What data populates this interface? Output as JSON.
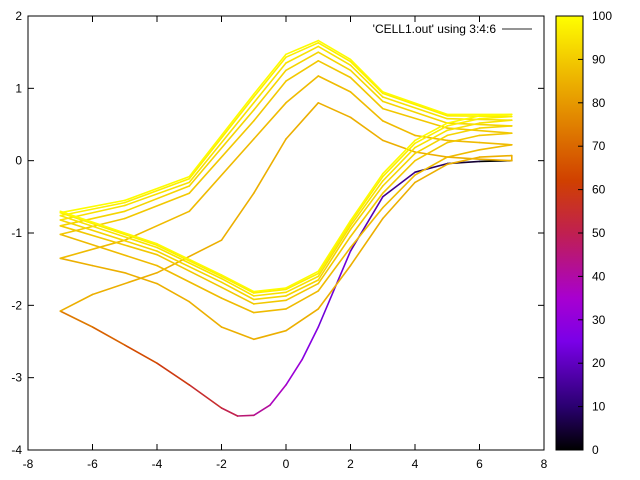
{
  "chart_data": {
    "type": "line",
    "title": "",
    "xlabel": "",
    "ylabel": "",
    "xlim": [
      -8,
      8
    ],
    "ylim": [
      -4,
      2
    ],
    "x_ticks": [
      "-8",
      "-6",
      "-4",
      "-2",
      "0",
      "2",
      "4",
      "6",
      "8"
    ],
    "y_ticks": [
      "-4",
      "-3",
      "-2",
      "-1",
      "0",
      "1",
      "2"
    ],
    "legend": {
      "label": "'CELL1.out' using 3:4:6",
      "position": "top-right"
    },
    "colorbar": {
      "range": [
        0,
        100
      ],
      "ticks": [
        "0",
        "10",
        "20",
        "30",
        "40",
        "50",
        "60",
        "70",
        "80",
        "90",
        "100"
      ],
      "palette": [
        "#000000",
        "#5a00c8",
        "#9a00ff",
        "#c21848",
        "#d84a00",
        "#e88a00",
        "#f0c400",
        "#ffff00"
      ]
    },
    "series": [
      {
        "cycle": 1,
        "points": [
          [
            7.0,
            0.0
          ],
          [
            6.0,
            -0.01
          ],
          [
            5.0,
            -0.04
          ],
          [
            4.0,
            -0.16
          ],
          [
            3.0,
            -0.5
          ],
          [
            2.0,
            -1.25
          ],
          [
            1.0,
            -2.3
          ],
          [
            0.5,
            -2.75
          ],
          [
            0.0,
            -3.1
          ],
          [
            -0.5,
            -3.38
          ],
          [
            -1.0,
            -3.52
          ],
          [
            -1.5,
            -3.53
          ],
          [
            -2.0,
            -3.42
          ],
          [
            -3.0,
            -3.1
          ],
          [
            -4.0,
            -2.8
          ],
          [
            -5.0,
            -2.55
          ],
          [
            -6.0,
            -2.3
          ],
          [
            -7.0,
            -2.08
          ]
        ]
      },
      {
        "cycle": 2,
        "points": [
          [
            -7.0,
            -2.08
          ],
          [
            -6.0,
            -1.85
          ],
          [
            -4.0,
            -1.55
          ],
          [
            -2.0,
            -1.1
          ],
          [
            -1.0,
            -0.45
          ],
          [
            0.0,
            0.3
          ],
          [
            1.0,
            0.8
          ],
          [
            2.0,
            0.6
          ],
          [
            3.0,
            0.28
          ],
          [
            4.0,
            0.12
          ],
          [
            5.0,
            0.05
          ],
          [
            6.0,
            0.02
          ],
          [
            7.0,
            0.0
          ],
          [
            7.0,
            0.07
          ],
          [
            6.0,
            0.05
          ],
          [
            5.0,
            -0.05
          ],
          [
            4.0,
            -0.3
          ],
          [
            3.0,
            -0.8
          ],
          [
            2.0,
            -1.45
          ],
          [
            1.0,
            -2.05
          ],
          [
            0.0,
            -2.35
          ],
          [
            -1.0,
            -2.47
          ],
          [
            -2.0,
            -2.3
          ],
          [
            -3.0,
            -1.95
          ],
          [
            -4.0,
            -1.7
          ],
          [
            -5.0,
            -1.55
          ],
          [
            -6.0,
            -1.45
          ],
          [
            -7.0,
            -1.35
          ]
        ]
      },
      {
        "cycle": 3,
        "points": [
          [
            -7.0,
            -1.35
          ],
          [
            -5.0,
            -1.1
          ],
          [
            -3.0,
            -0.7
          ],
          [
            -1.0,
            0.3
          ],
          [
            0.0,
            0.8
          ],
          [
            1.0,
            1.17
          ],
          [
            2.0,
            0.95
          ],
          [
            3.0,
            0.55
          ],
          [
            4.0,
            0.35
          ],
          [
            5.0,
            0.28
          ],
          [
            6.0,
            0.25
          ],
          [
            7.0,
            0.22
          ],
          [
            6.0,
            0.15
          ],
          [
            5.0,
            0.05
          ],
          [
            4.0,
            -0.2
          ],
          [
            3.0,
            -0.65
          ],
          [
            2.0,
            -1.2
          ],
          [
            1.0,
            -1.8
          ],
          [
            0.0,
            -2.05
          ],
          [
            -1.0,
            -2.1
          ],
          [
            -2.0,
            -1.9
          ],
          [
            -4.0,
            -1.45
          ],
          [
            -7.0,
            -1.02
          ]
        ]
      },
      {
        "cycle": 4,
        "points": [
          [
            -7.0,
            -1.02
          ],
          [
            -5.0,
            -0.8
          ],
          [
            -3.0,
            -0.45
          ],
          [
            -1.0,
            0.55
          ],
          [
            0.0,
            1.1
          ],
          [
            1.0,
            1.38
          ],
          [
            2.0,
            1.15
          ],
          [
            3.0,
            0.72
          ],
          [
            5.0,
            0.45
          ],
          [
            7.0,
            0.38
          ],
          [
            6.0,
            0.35
          ],
          [
            5.0,
            0.25
          ],
          [
            4.0,
            0.0
          ],
          [
            3.0,
            -0.45
          ],
          [
            2.0,
            -1.05
          ],
          [
            1.0,
            -1.7
          ],
          [
            0.0,
            -1.93
          ],
          [
            -1.0,
            -1.98
          ],
          [
            -2.0,
            -1.75
          ],
          [
            -4.0,
            -1.3
          ],
          [
            -7.0,
            -0.9
          ]
        ]
      },
      {
        "cycle": 5,
        "points": [
          [
            -7.0,
            -0.9
          ],
          [
            -5.0,
            -0.7
          ],
          [
            -3.0,
            -0.35
          ],
          [
            -1.0,
            0.7
          ],
          [
            0.0,
            1.25
          ],
          [
            1.0,
            1.5
          ],
          [
            2.0,
            1.25
          ],
          [
            3.0,
            0.82
          ],
          [
            5.0,
            0.52
          ],
          [
            7.0,
            0.48
          ],
          [
            6.0,
            0.45
          ],
          [
            5.0,
            0.35
          ],
          [
            4.0,
            0.1
          ],
          [
            3.0,
            -0.35
          ],
          [
            2.0,
            -0.95
          ],
          [
            1.0,
            -1.65
          ],
          [
            0.0,
            -1.87
          ],
          [
            -1.0,
            -1.92
          ],
          [
            -2.0,
            -1.68
          ],
          [
            -4.0,
            -1.25
          ],
          [
            -7.0,
            -0.82
          ]
        ]
      },
      {
        "cycle": 6,
        "points": [
          [
            -7.0,
            -0.82
          ],
          [
            -5.0,
            -0.62
          ],
          [
            -3.0,
            -0.3
          ],
          [
            -1.0,
            0.8
          ],
          [
            0.0,
            1.35
          ],
          [
            1.0,
            1.58
          ],
          [
            2.0,
            1.32
          ],
          [
            3.0,
            0.88
          ],
          [
            5.0,
            0.58
          ],
          [
            7.0,
            0.56
          ],
          [
            6.0,
            0.52
          ],
          [
            5.0,
            0.42
          ],
          [
            4.0,
            0.18
          ],
          [
            3.0,
            -0.28
          ],
          [
            2.0,
            -0.9
          ],
          [
            1.0,
            -1.6
          ],
          [
            0.0,
            -1.82
          ],
          [
            -1.0,
            -1.87
          ],
          [
            -2.0,
            -1.63
          ],
          [
            -4.0,
            -1.2
          ],
          [
            -7.0,
            -0.76
          ]
        ]
      },
      {
        "cycle": 7,
        "points": [
          [
            -7.0,
            -0.76
          ],
          [
            -5.0,
            -0.58
          ],
          [
            -3.0,
            -0.25
          ],
          [
            -1.0,
            0.88
          ],
          [
            0.0,
            1.43
          ],
          [
            1.0,
            1.63
          ],
          [
            2.0,
            1.37
          ],
          [
            3.0,
            0.93
          ],
          [
            5.0,
            0.62
          ],
          [
            7.0,
            0.61
          ],
          [
            6.0,
            0.58
          ],
          [
            5.0,
            0.48
          ],
          [
            4.0,
            0.24
          ],
          [
            3.0,
            -0.22
          ],
          [
            2.0,
            -0.86
          ],
          [
            1.0,
            -1.56
          ],
          [
            0.0,
            -1.78
          ],
          [
            -1.0,
            -1.83
          ],
          [
            -2.0,
            -1.6
          ],
          [
            -4.0,
            -1.17
          ],
          [
            -7.0,
            -0.72
          ]
        ]
      },
      {
        "cycle": 8,
        "points": [
          [
            -7.0,
            -0.72
          ],
          [
            -5.0,
            -0.55
          ],
          [
            -3.0,
            -0.22
          ],
          [
            -1.0,
            0.92
          ],
          [
            0.0,
            1.47
          ],
          [
            1.0,
            1.66
          ],
          [
            2.0,
            1.4
          ],
          [
            3.0,
            0.95
          ],
          [
            5.0,
            0.64
          ],
          [
            7.0,
            0.64
          ],
          [
            6.0,
            0.62
          ],
          [
            5.0,
            0.52
          ],
          [
            4.0,
            0.28
          ],
          [
            3.0,
            -0.18
          ],
          [
            2.0,
            -0.83
          ],
          [
            1.0,
            -1.53
          ],
          [
            0.0,
            -1.76
          ],
          [
            -1.0,
            -1.81
          ],
          [
            -2.0,
            -1.58
          ],
          [
            -4.0,
            -1.15
          ],
          [
            -7.0,
            -0.7
          ]
        ]
      }
    ]
  }
}
